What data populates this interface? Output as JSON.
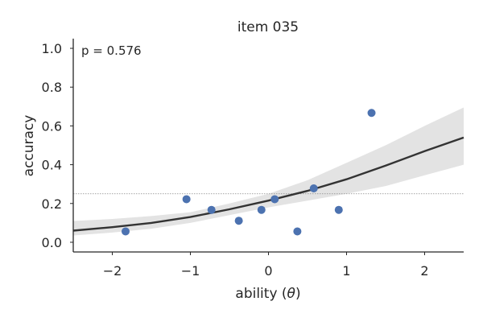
{
  "chart_data": {
    "type": "scatter",
    "title": "item 035",
    "xlabel_main": "ability (",
    "xlabel_symbol": "θ",
    "xlabel_close": ")",
    "ylabel": "accuracy",
    "annotation": "p = 0.576",
    "xlim": [
      -2.5,
      2.5
    ],
    "ylim": [
      -0.05,
      1.05
    ],
    "xticks": [
      -2,
      -1,
      0,
      1,
      2
    ],
    "xtick_labels": [
      "−2",
      "−1",
      "0",
      "1",
      "2"
    ],
    "yticks": [
      0.0,
      0.2,
      0.4,
      0.6,
      0.8,
      1.0
    ],
    "ytick_labels": [
      "0.0",
      "0.2",
      "0.4",
      "0.6",
      "0.8",
      "1.0"
    ],
    "reference_line": {
      "y": 0.25,
      "style": "dotted"
    },
    "points": [
      {
        "x": -1.83,
        "y": 0.056
      },
      {
        "x": -1.05,
        "y": 0.222
      },
      {
        "x": -0.73,
        "y": 0.167
      },
      {
        "x": -0.38,
        "y": 0.111
      },
      {
        "x": -0.09,
        "y": 0.167
      },
      {
        "x": 0.08,
        "y": 0.222
      },
      {
        "x": 0.37,
        "y": 0.056
      },
      {
        "x": 0.58,
        "y": 0.278
      },
      {
        "x": 0.9,
        "y": 0.167
      },
      {
        "x": 1.32,
        "y": 0.667
      }
    ],
    "fit_curve": {
      "x": [
        -2.5,
        -2.0,
        -1.5,
        -1.0,
        -0.5,
        0.0,
        0.5,
        1.0,
        1.5,
        2.0,
        2.5
      ],
      "y": [
        0.06,
        0.078,
        0.1,
        0.13,
        0.17,
        0.215,
        0.265,
        0.325,
        0.395,
        0.47,
        0.54
      ],
      "lower": [
        0.035,
        0.05,
        0.07,
        0.1,
        0.14,
        0.18,
        0.215,
        0.25,
        0.29,
        0.345,
        0.4
      ],
      "upper": [
        0.11,
        0.12,
        0.135,
        0.155,
        0.2,
        0.25,
        0.32,
        0.41,
        0.5,
        0.6,
        0.695
      ]
    },
    "colors": {
      "points": "#4c72b0",
      "curve": "#333333",
      "band": "#e3e3e3",
      "axis": "#262626",
      "reference": "#888888"
    },
    "grid": false
  }
}
